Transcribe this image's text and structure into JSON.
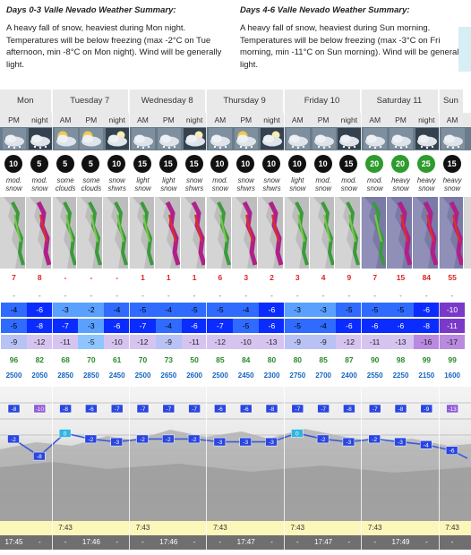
{
  "summary_a": {
    "title": "Days 0-3 Valle Nevado Weather Summary:",
    "text": "A heavy fall of snow, heaviest during Mon night. Temperatures will be below freezing (max -2°C on Tue afternoon, min -8°C on Mon night). Wind will be generally light."
  },
  "summary_b": {
    "title": "Days 4-6 Valle Nevado Weather Summary:",
    "text": "A heavy fall of snow, heaviest during Sun morning. Temperatures will be below freezing (max -3°C on Fri morning, min -11°C on Sun morning). Wind will be generally light."
  },
  "days": [
    {
      "label": "Mon",
      "cols": 2
    },
    {
      "label": "Tuesday 7",
      "cols": 3
    },
    {
      "label": "Wednesday 8",
      "cols": 3
    },
    {
      "label": "Thursday 9",
      "cols": 3
    },
    {
      "label": "Friday 10",
      "cols": 3
    },
    {
      "label": "Saturday 11",
      "cols": 3
    },
    {
      "label": "Sun",
      "cols": 1
    }
  ],
  "periods": [
    "PM",
    "night",
    "AM",
    "PM",
    "night",
    "AM",
    "PM",
    "night",
    "AM",
    "PM",
    "night",
    "AM",
    "PM",
    "night",
    "AM",
    "PM",
    "night",
    "AM"
  ],
  "icons": [
    "cloud-snow-icon",
    "cloud-night-snow-icon",
    "sun-cloud-icon",
    "sun-cloud-icon",
    "moon-cloud-icon",
    "cloud-snow-icon",
    "cloud-snow-icon",
    "moon-cloud-icon",
    "cloud-snow-icon",
    "sun-cloud-snow-icon",
    "moon-cloud-icon",
    "cloud-snow-icon",
    "cloud-snow-icon",
    "cloud-night-snow-icon",
    "cloud-snow-icon",
    "cloud-snow-icon",
    "cloud-night-snow-icon",
    "cloud-snow-icon"
  ],
  "wind": [
    "10",
    "5",
    "5",
    "5",
    "10",
    "15",
    "15",
    "15",
    "10",
    "10",
    "10",
    "10",
    "10",
    "15",
    "20",
    "20",
    "25",
    "15"
  ],
  "wind_green": [
    false,
    false,
    false,
    false,
    false,
    false,
    false,
    false,
    false,
    false,
    false,
    false,
    false,
    false,
    true,
    true,
    true,
    false
  ],
  "desc": [
    [
      "mod.",
      "snow"
    ],
    [
      "mod.",
      "snow"
    ],
    [
      "some",
      "clouds"
    ],
    [
      "some",
      "clouds"
    ],
    [
      "snow",
      "shwrs"
    ],
    [
      "light",
      "snow"
    ],
    [
      "light",
      "snow"
    ],
    [
      "snow",
      "shwrs"
    ],
    [
      "mod.",
      "snow"
    ],
    [
      "snow",
      "shwrs"
    ],
    [
      "snow",
      "shwrs"
    ],
    [
      "light",
      "snow"
    ],
    [
      "mod.",
      "snow"
    ],
    [
      "mod.",
      "snow"
    ],
    [
      "mod.",
      "snow"
    ],
    [
      "heavy",
      "snow"
    ],
    [
      "heavy",
      "snow"
    ],
    [
      "heavy",
      "snow"
    ]
  ],
  "snow": [
    "7",
    "8",
    "-",
    "-",
    "-",
    "1",
    "1",
    "1",
    "6",
    "3",
    "2",
    "3",
    "4",
    "9",
    "7",
    "15",
    "84",
    "55"
  ],
  "rain": [
    "-",
    "-",
    "-",
    "-",
    "-",
    "-",
    "-",
    "-",
    "-",
    "-",
    "-",
    "-",
    "-",
    "-",
    "-",
    "-",
    "-",
    "-"
  ],
  "t_max": [
    "-4",
    "-6",
    "-3",
    "-2",
    "-4",
    "-5",
    "-4",
    "-5",
    "-5",
    "-4",
    "-6",
    "-3",
    "-3",
    "-5",
    "-5",
    "-5",
    "-6",
    "-10"
  ],
  "t_min": [
    "-5",
    "-8",
    "-7",
    "-3",
    "-6",
    "-7",
    "-4",
    "-6",
    "-7",
    "-5",
    "-6",
    "-5",
    "-4",
    "-6",
    "-6",
    "-6",
    "-8",
    "-11"
  ],
  "chill": [
    "-9",
    "-12",
    "-11",
    "-5",
    "-10",
    "-12",
    "-9",
    "-11",
    "-12",
    "-10",
    "-13",
    "-9",
    "-9",
    "-12",
    "-11",
    "-13",
    "-16",
    "-17"
  ],
  "humidity": [
    "96",
    "82",
    "68",
    "70",
    "61",
    "70",
    "73",
    "50",
    "85",
    "84",
    "80",
    "80",
    "85",
    "87",
    "90",
    "98",
    "99",
    "99"
  ],
  "freezing": [
    "2500",
    "2050",
    "2850",
    "2850",
    "2450",
    "2500",
    "2650",
    "2600",
    "2500",
    "2450",
    "2300",
    "2750",
    "2700",
    "2400",
    "2550",
    "2250",
    "2150",
    "1600"
  ],
  "chart_upper": [
    "-8",
    "-10",
    "-8",
    "-6",
    "-7",
    "-7",
    "-7",
    "-7",
    "-6",
    "-6",
    "-8",
    "-7",
    "-7",
    "-8",
    "-7",
    "-8",
    "-9",
    "-13"
  ],
  "chart_lower": [
    "-2",
    "-8",
    "0",
    "-2",
    "-3",
    "-2",
    "-2",
    "-2",
    "-3",
    "-3",
    "-3",
    "0",
    "-2",
    "-3",
    "-2",
    "-3",
    "-4",
    "-6"
  ],
  "sunrise": [
    "",
    "",
    "7:43",
    "",
    "",
    "7:43",
    "",
    "",
    "7:43",
    "",
    "",
    "7:43",
    "",
    "",
    "7:43",
    "",
    "",
    "7:43"
  ],
  "sunset": [
    "17:45",
    "-",
    "-",
    "17:46",
    "-",
    "-",
    "17:46",
    "-",
    "-",
    "17:47",
    "-",
    "-",
    "17:47",
    "-",
    "-",
    "17:49",
    "-",
    "-"
  ],
  "colors": {
    "header_bg": "#e9e9e9",
    "snow_red": "#dd2222",
    "humidity_green": "#2a8a2a",
    "freezing_blue": "#1565c0",
    "sun_bg": "#fbf6ba",
    "set_bg": "#6f6f6f"
  }
}
